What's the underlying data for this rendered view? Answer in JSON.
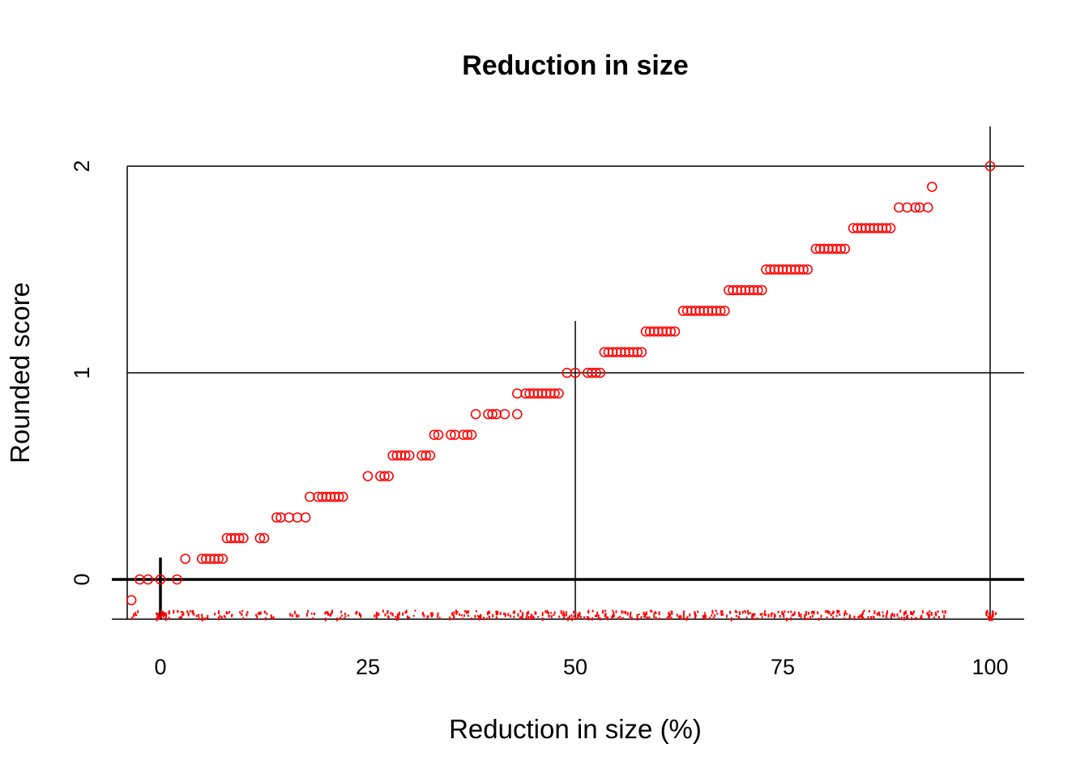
{
  "chart_data": {
    "type": "scatter",
    "title": "Reduction in size",
    "xlabel": "Reduction in size (%)",
    "ylabel": "Rounded score",
    "xlim": [
      -4,
      104
    ],
    "ylim": [
      -0.19,
      2.22
    ],
    "x_ticks": [
      0,
      25,
      50,
      75,
      100
    ],
    "y_ticks": [
      0,
      1,
      2
    ],
    "color": "#ff0000",
    "reference_lines": {
      "horizontal": [
        0,
        1,
        2
      ],
      "vertical": [
        0,
        50,
        100
      ]
    },
    "series": [
      {
        "x": [
          -3.5,
          -2.5,
          -1.5,
          0,
          2,
          3,
          5,
          5.5,
          6,
          6.5,
          7,
          7.5,
          8,
          8.5,
          9,
          9.5,
          10,
          12,
          12.5,
          14,
          14.5,
          15.5,
          16.5,
          17.5,
          18,
          19,
          19.5,
          20,
          20.5,
          21,
          21.5,
          22,
          25,
          26.5,
          27,
          27.5,
          28,
          28.5,
          29,
          29.5,
          30,
          31.5,
          32,
          32.5,
          33,
          33.5,
          35,
          35.5,
          36.5,
          37,
          37.5,
          38,
          39.5,
          40,
          40.5,
          41.5,
          43,
          43,
          44,
          44.5,
          45,
          45.5,
          46,
          46.5,
          47,
          47.5,
          48,
          49,
          50,
          51.5,
          52,
          52.5,
          53,
          53.5,
          54,
          54.5,
          55,
          55.5,
          56,
          56.5,
          57,
          57.5,
          58,
          58.5,
          59,
          59.5,
          60,
          60.5,
          61,
          61.5,
          62,
          63,
          63.5,
          64,
          64.5,
          65,
          65.5,
          66,
          66.5,
          67,
          67.5,
          68,
          68.5,
          69,
          69.5,
          70,
          70.5,
          71,
          71.5,
          72,
          72.5,
          73,
          73.5,
          74,
          74.5,
          75,
          75.5,
          76,
          76.5,
          77,
          77.5,
          78,
          79,
          79.5,
          80,
          80.5,
          81,
          81.5,
          82,
          82.5,
          83.5,
          84,
          84.5,
          85,
          85.5,
          86,
          86.5,
          87,
          87.5,
          88,
          89,
          90,
          91,
          91.5,
          92.5,
          93,
          100
        ],
        "y": [
          -0.1,
          0,
          0,
          0,
          0,
          0.1,
          0.1,
          0.1,
          0.1,
          0.1,
          0.1,
          0.1,
          0.2,
          0.2,
          0.2,
          0.2,
          0.2,
          0.2,
          0.2,
          0.3,
          0.3,
          0.3,
          0.3,
          0.3,
          0.4,
          0.4,
          0.4,
          0.4,
          0.4,
          0.4,
          0.4,
          0.4,
          0.5,
          0.5,
          0.5,
          0.5,
          0.6,
          0.6,
          0.6,
          0.6,
          0.6,
          0.6,
          0.6,
          0.6,
          0.7,
          0.7,
          0.7,
          0.7,
          0.7,
          0.7,
          0.7,
          0.8,
          0.8,
          0.8,
          0.8,
          0.8,
          0.8,
          0.9,
          0.9,
          0.9,
          0.9,
          0.9,
          0.9,
          0.9,
          0.9,
          0.9,
          0.9,
          1.0,
          1.0,
          1.0,
          1.0,
          1.0,
          1.0,
          1.1,
          1.1,
          1.1,
          1.1,
          1.1,
          1.1,
          1.1,
          1.1,
          1.1,
          1.1,
          1.2,
          1.2,
          1.2,
          1.2,
          1.2,
          1.2,
          1.2,
          1.2,
          1.3,
          1.3,
          1.3,
          1.3,
          1.3,
          1.3,
          1.3,
          1.3,
          1.3,
          1.3,
          1.3,
          1.4,
          1.4,
          1.4,
          1.4,
          1.4,
          1.4,
          1.4,
          1.4,
          1.4,
          1.5,
          1.5,
          1.5,
          1.5,
          1.5,
          1.5,
          1.5,
          1.5,
          1.5,
          1.5,
          1.5,
          1.6,
          1.6,
          1.6,
          1.6,
          1.6,
          1.6,
          1.6,
          1.6,
          1.7,
          1.7,
          1.7,
          1.7,
          1.7,
          1.7,
          1.7,
          1.7,
          1.7,
          1.7,
          1.8,
          1.8,
          1.8,
          1.8,
          1.8,
          1.9,
          2.0
        ]
      }
    ],
    "rug": {
      "y": -0.17,
      "x": [
        -3,
        0,
        0,
        0,
        0,
        1,
        2,
        3,
        4,
        5,
        7,
        8,
        10,
        12,
        13,
        16,
        18,
        20,
        21,
        22,
        24,
        26,
        27,
        28,
        29,
        30,
        32,
        33,
        35,
        36,
        37,
        38,
        39,
        40,
        41,
        42,
        43,
        44,
        45,
        46,
        47,
        48,
        49,
        50,
        50,
        51,
        52,
        53,
        54,
        55,
        56,
        57,
        58,
        59,
        60,
        61,
        62,
        63,
        64,
        65,
        66,
        67,
        68,
        69,
        70,
        71,
        72,
        73,
        74,
        75,
        76,
        77,
        78,
        79,
        80,
        81,
        82,
        83,
        84,
        85,
        86,
        87,
        88,
        89,
        90,
        91,
        92,
        93,
        94,
        100,
        100,
        100
      ]
    }
  }
}
